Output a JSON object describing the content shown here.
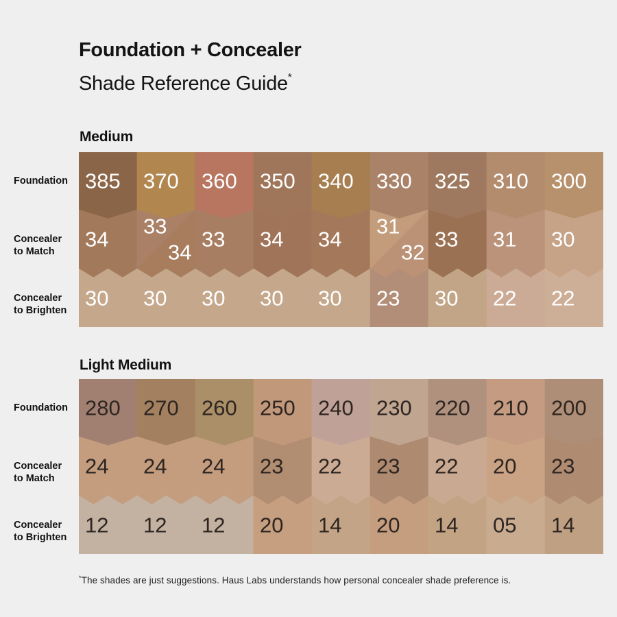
{
  "header": {
    "title_line1": "Foundation + Concealer",
    "title_line2": "Shade Reference Guide",
    "asterisk": "*"
  },
  "footnote": {
    "asterisk": "*",
    "text": "The shades are just suggestions. Haus Labs understands how personal concealer shade preference is."
  },
  "colors": {
    "page_bg": "#efefef",
    "heading_text": "#111111",
    "medium_number_text": "#ffffff",
    "light_medium_number_text": "#2d2521"
  },
  "chart_data": {
    "type": "table",
    "title": "Foundation + Concealer Shade Reference Guide",
    "row_headers": [
      "Foundation",
      "Concealer to Match",
      "Concealer to Brighten"
    ],
    "sections": [
      {
        "name": "Medium",
        "number_color": "#ffffff",
        "rows": [
          {
            "label_lines": [
              "Foundation"
            ],
            "cells": [
              {
                "label": "385",
                "color": "#8b6547"
              },
              {
                "label": "370",
                "color": "#b2864f"
              },
              {
                "label": "360",
                "color": "#b87560"
              },
              {
                "label": "350",
                "color": "#a0765a"
              },
              {
                "label": "340",
                "color": "#a67e50"
              },
              {
                "label": "330",
                "color": "#a98268"
              },
              {
                "label": "325",
                "color": "#9e7960"
              },
              {
                "label": "310",
                "color": "#b28c6d"
              },
              {
                "label": "300",
                "color": "#b7906c"
              }
            ]
          },
          {
            "label_lines": [
              "Concealer",
              "to Match"
            ],
            "cells": [
              {
                "label": "34",
                "color": "#a3795b"
              },
              {
                "split": true,
                "labels": [
                  "33",
                  "34"
                ],
                "colors": [
                  "#aa8166",
                  "#a77d5e"
                ]
              },
              {
                "label": "33",
                "color": "#a87e62"
              },
              {
                "label": "34",
                "color": "#a07458"
              },
              {
                "label": "34",
                "color": "#a4795b"
              },
              {
                "split": true,
                "labels": [
                  "31",
                  "32"
                ],
                "colors": [
                  "#c39c7c",
                  "#bb9275"
                ]
              },
              {
                "label": "33",
                "color": "#9b7154"
              },
              {
                "label": "31",
                "color": "#ba937a"
              },
              {
                "label": "30",
                "color": "#c6a286"
              }
            ]
          },
          {
            "label_lines": [
              "Concealer",
              "to Brighten"
            ],
            "cells": [
              {
                "label": "30",
                "color": "#c5a88c"
              },
              {
                "label": "30",
                "color": "#c5a88c"
              },
              {
                "label": "30",
                "color": "#c5a88c"
              },
              {
                "label": "30",
                "color": "#c5a88c"
              },
              {
                "label": "30",
                "color": "#c5a88c"
              },
              {
                "label": "23",
                "color": "#b28e78"
              },
              {
                "label": "30",
                "color": "#c2a487"
              },
              {
                "label": "22",
                "color": "#cbab95"
              },
              {
                "label": "22",
                "color": "#cdae97"
              }
            ]
          }
        ]
      },
      {
        "name": "Light Medium",
        "number_color": "#2d2521",
        "rows": [
          {
            "label_lines": [
              "Foundation"
            ],
            "cells": [
              {
                "label": "280",
                "color": "#a28071"
              },
              {
                "label": "270",
                "color": "#a3805f"
              },
              {
                "label": "260",
                "color": "#ab8f68"
              },
              {
                "label": "250",
                "color": "#c2987a"
              },
              {
                "label": "240",
                "color": "#bfa198"
              },
              {
                "label": "230",
                "color": "#c0a591"
              },
              {
                "label": "220",
                "color": "#af917e"
              },
              {
                "label": "210",
                "color": "#c59c82"
              },
              {
                "label": "200",
                "color": "#ae8e76"
              }
            ]
          },
          {
            "label_lines": [
              "Concealer",
              "to Match"
            ],
            "cells": [
              {
                "label": "24",
                "color": "#c49d7f"
              },
              {
                "label": "24",
                "color": "#c49d7f"
              },
              {
                "label": "24",
                "color": "#c49d7f"
              },
              {
                "label": "23",
                "color": "#b18d72"
              },
              {
                "label": "22",
                "color": "#cbab94"
              },
              {
                "label": "23",
                "color": "#ae8a70"
              },
              {
                "label": "22",
                "color": "#caa992"
              },
              {
                "label": "20",
                "color": "#c9a384"
              },
              {
                "label": "23",
                "color": "#ae8b71"
              }
            ]
          },
          {
            "label_lines": [
              "Concealer",
              "to Brighten"
            ],
            "cells": [
              {
                "label": "12",
                "color": "#c3b2a2"
              },
              {
                "label": "12",
                "color": "#c3b2a2"
              },
              {
                "label": "12",
                "color": "#c3b2a2"
              },
              {
                "label": "20",
                "color": "#c69e80"
              },
              {
                "label": "14",
                "color": "#c4a487"
              },
              {
                "label": "20",
                "color": "#c59e80"
              },
              {
                "label": "14",
                "color": "#c2a384"
              },
              {
                "label": "05",
                "color": "#c9ab90"
              },
              {
                "label": "14",
                "color": "#bfa082"
              }
            ]
          }
        ]
      }
    ]
  }
}
